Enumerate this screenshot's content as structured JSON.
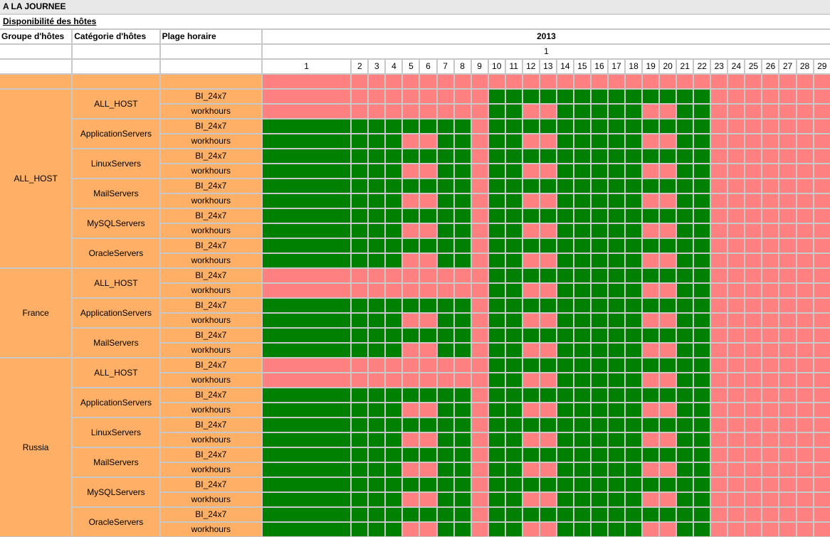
{
  "title": "A LA JOURNEE",
  "subtitle": "Disponibilité des hôtes",
  "headers": {
    "group": "Groupe d'hôtes",
    "category": "Catégorie d'hôtes",
    "timeslot": "Plage horaire",
    "year": "2013",
    "month": "1"
  },
  "days": [
    "1",
    "2",
    "3",
    "4",
    "5",
    "6",
    "7",
    "8",
    "9",
    "10",
    "11",
    "12",
    "13",
    "14",
    "15",
    "16",
    "17",
    "18",
    "19",
    "20",
    "21",
    "22",
    "23",
    "24",
    "25",
    "26",
    "27",
    "28",
    "29"
  ],
  "legend_colors": {
    "available": "#008000",
    "unavailable": "#ff8080",
    "label_bg": "#ffb066"
  },
  "status_key": {
    "G": "available",
    "R": "unavailable"
  },
  "summary_row": "RRRRRRRRRRRRRRRRRRRRRRRRRRRRR",
  "groups": [
    {
      "name": "ALL_HOST",
      "categories": [
        {
          "name": "ALL_HOST",
          "slots": [
            {
              "name": "BI_24x7",
              "status": "RRRRRRRRRGGGGGGGGGGGGGRRRRRRR"
            },
            {
              "name": "workhours",
              "status": "RRRRRRRRRGGRRGGGGGRRGGRRRRRRR"
            }
          ]
        },
        {
          "name": "ApplicationServers",
          "slots": [
            {
              "name": "BI_24x7",
              "status": "GGGGGGGGRGGGGGGGGGGGGGRRRRRRR"
            },
            {
              "name": "workhours",
              "status": "GGGGRRGGRGGRRGGGGGRRGGRRRRRRR"
            }
          ]
        },
        {
          "name": "LinuxServers",
          "slots": [
            {
              "name": "BI_24x7",
              "status": "GGGGGGGGRGGGGGGGGGGGGGRRRRRRR"
            },
            {
              "name": "workhours",
              "status": "GGGGRRGGRGGRRGGGGGRRGGRRRRRRR"
            }
          ]
        },
        {
          "name": "MailServers",
          "slots": [
            {
              "name": "BI_24x7",
              "status": "GGGGGGGGRGGGGGGGGGGGGGRRRRRRR"
            },
            {
              "name": "workhours",
              "status": "GGGGRRGGRGGRRGGGGGRRGGRRRRRRR"
            }
          ]
        },
        {
          "name": "MySQLServers",
          "slots": [
            {
              "name": "BI_24x7",
              "status": "GGGGGGGGRGGGGGGGGGGGGGRRRRRRR"
            },
            {
              "name": "workhours",
              "status": "GGGGRRGGRGGRRGGGGGRRGGRRRRRRR"
            }
          ]
        },
        {
          "name": "OracleServers",
          "slots": [
            {
              "name": "BI_24x7",
              "status": "GGGGGGGGRGGGGGGGGGGGGGRRRRRRR"
            },
            {
              "name": "workhours",
              "status": "GGGGRRGGRGGRRGGGGGRRGGRRRRRRR"
            }
          ]
        }
      ]
    },
    {
      "name": "France",
      "categories": [
        {
          "name": "ALL_HOST",
          "slots": [
            {
              "name": "BI_24x7",
              "status": "RRRRRRRRRGGGGGGGGGGGGGRRRRRRR"
            },
            {
              "name": "workhours",
              "status": "RRRRRRRRRGGRRGGGGGRRGGRRRRRRR"
            }
          ]
        },
        {
          "name": "ApplicationServers",
          "slots": [
            {
              "name": "BI_24x7",
              "status": "GGGGGGGGRGGGGGGGGGGGGGRRRRRRR"
            },
            {
              "name": "workhours",
              "status": "GGGGRRGGRGGRRGGGGGRRGGRRRRRRR"
            }
          ]
        },
        {
          "name": "MailServers",
          "slots": [
            {
              "name": "BI_24x7",
              "status": "GGGGGGGGRGGGGGGGGGGGGGRRRRRRR"
            },
            {
              "name": "workhours",
              "status": "GGGGRRGGRGGRRGGGGGRRGGRRRRRRR"
            }
          ]
        }
      ]
    },
    {
      "name": "Russia",
      "categories": [
        {
          "name": "ALL_HOST",
          "slots": [
            {
              "name": "BI_24x7",
              "status": "RRRRRRRRRGGGGGGGGGGGGGRRRRRRR"
            },
            {
              "name": "workhours",
              "status": "RRRRRRRRRGGRRGGGGGRRGGRRRRRRR"
            }
          ]
        },
        {
          "name": "ApplicationServers",
          "slots": [
            {
              "name": "BI_24x7",
              "status": "GGGGGGGGRGGGGGGGGGGGGGRRRRRRR"
            },
            {
              "name": "workhours",
              "status": "GGGGRRGGRGGRRGGGGGRRGGRRRRRRR"
            }
          ]
        },
        {
          "name": "LinuxServers",
          "slots": [
            {
              "name": "BI_24x7",
              "status": "GGGGGGGGRGGGGGGGGGGGGGRRRRRRR"
            },
            {
              "name": "workhours",
              "status": "GGGGRRGGRGGRRGGGGGRRGGRRRRRRR"
            }
          ]
        },
        {
          "name": "MailServers",
          "slots": [
            {
              "name": "BI_24x7",
              "status": "GGGGGGGGRGGGGGGGGGGGGGRRRRRRR"
            },
            {
              "name": "workhours",
              "status": "GGGGRRGGRGGRRGGGGGRRGGRRRRRRR"
            }
          ]
        },
        {
          "name": "MySQLServers",
          "slots": [
            {
              "name": "BI_24x7",
              "status": "GGGGGGGGRGGGGGGGGGGGGGRRRRRRR"
            },
            {
              "name": "workhours",
              "status": "GGGGRRGGRGGRRGGGGGRRGGRRRRRRR"
            }
          ]
        },
        {
          "name": "OracleServers",
          "slots": [
            {
              "name": "BI_24x7",
              "status": "GGGGGGGGRGGGGGGGGGGGGGRRRRRRR"
            },
            {
              "name": "workhours",
              "status": "GGGGRRGGRGGRRGGGGGRRGGRRRRRRR"
            }
          ]
        }
      ]
    }
  ]
}
